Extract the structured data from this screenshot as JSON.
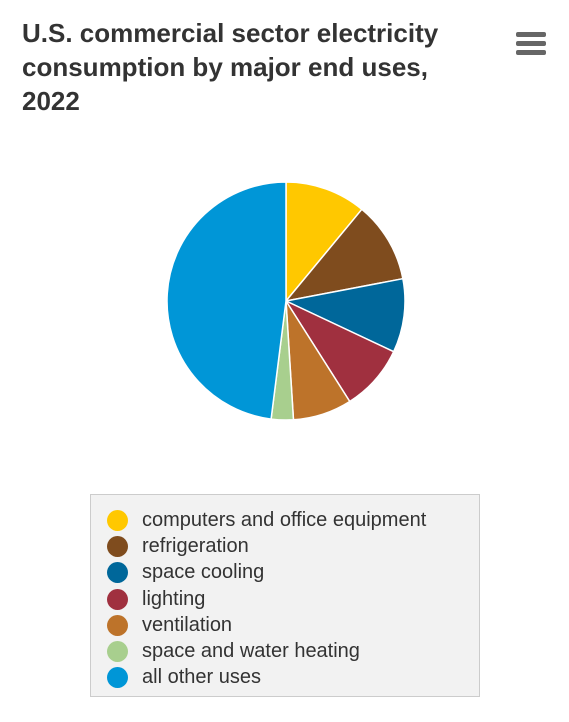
{
  "chart_data": {
    "type": "pie",
    "title": "U.S. commercial sector electricity consumption by major end uses, 2022",
    "legend_position": "bottom",
    "series": [
      {
        "name": "computers and office equipment",
        "value": 11,
        "color": "#ffc800"
      },
      {
        "name": "refrigeration",
        "value": 11,
        "color": "#7f4c1e"
      },
      {
        "name": "space cooling",
        "value": 10,
        "color": "#00679a"
      },
      {
        "name": "lighting",
        "value": 9,
        "color": "#a0303f"
      },
      {
        "name": "ventilation",
        "value": 8,
        "color": "#bd732a"
      },
      {
        "name": "space and water heating",
        "value": 3,
        "color": "#a8cf8e"
      },
      {
        "name": "all other uses",
        "value": 48,
        "color": "#0096d7"
      }
    ]
  },
  "menu_icon": "hamburger-menu-icon"
}
